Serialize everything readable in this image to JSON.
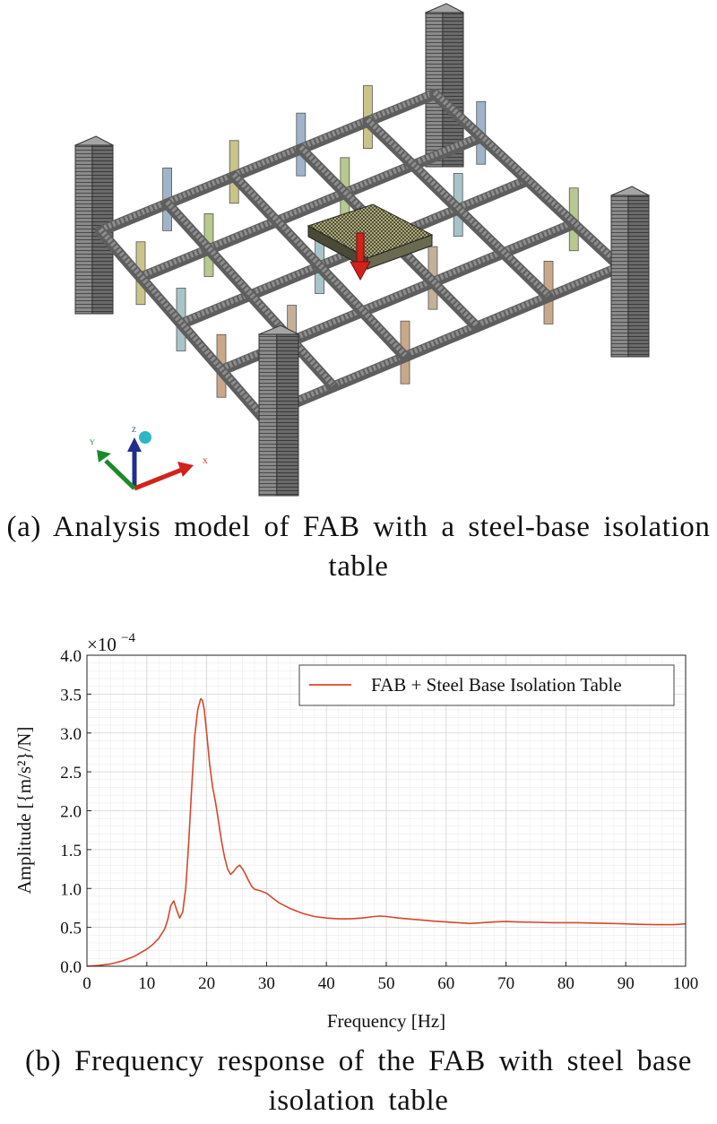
{
  "figure_a": {
    "caption": "(a) Analysis model of FAB with a steel-base isolation table",
    "axis_triad": {
      "x_label": "X",
      "y_label": "Y",
      "z_label": "Z"
    },
    "colors": {
      "frame": "#8d8d8d",
      "beam_dark": "#5e5e5e",
      "load_arrow": "#d0231c"
    }
  },
  "figure_b": {
    "caption": "(b) Frequency response of the FAB with steel base isolation table"
  },
  "chart_data": {
    "type": "line",
    "title": "",
    "xlabel": "Frequency [Hz]",
    "ylabel": "Amplitude [{m/s²}/N]",
    "y_multiplier_label": "×10",
    "y_multiplier_exponent": "−4",
    "xlim": [
      0,
      100
    ],
    "ylim": [
      0,
      4.0
    ],
    "xticks": [
      "0",
      "10",
      "20",
      "30",
      "40",
      "50",
      "60",
      "70",
      "80",
      "90",
      "100"
    ],
    "yticks": [
      "0.0",
      "0.5",
      "1.0",
      "1.5",
      "2.0",
      "2.5",
      "3.0",
      "3.5",
      "4.0"
    ],
    "grid": true,
    "legend_position": "top-right",
    "series": [
      {
        "name": "FAB + Steel Base Isolation Table",
        "color": "#d9462b",
        "x": [
          0,
          2,
          4,
          6,
          8,
          10,
          11,
          12,
          13,
          13.5,
          14,
          14.5,
          15,
          15.5,
          16,
          16.5,
          17,
          17.5,
          18,
          18.5,
          19,
          19.3,
          19.6,
          20,
          20.5,
          21,
          21.5,
          22,
          22.5,
          23,
          23.5,
          24,
          24.5,
          25,
          25.5,
          26,
          26.5,
          27,
          27.5,
          28,
          29,
          30,
          31,
          32,
          34,
          36,
          38,
          40,
          42,
          44,
          46,
          48,
          49,
          50,
          52,
          55,
          58,
          60,
          62,
          64,
          66,
          68,
          70,
          72,
          75,
          78,
          80,
          82,
          85,
          88,
          90,
          92,
          95,
          98,
          100
        ],
        "y": [
          0.0,
          0.01,
          0.03,
          0.07,
          0.13,
          0.22,
          0.28,
          0.36,
          0.48,
          0.6,
          0.78,
          0.84,
          0.72,
          0.62,
          0.7,
          1.0,
          1.6,
          2.3,
          2.95,
          3.3,
          3.44,
          3.42,
          3.3,
          3.0,
          2.6,
          2.3,
          2.1,
          1.85,
          1.6,
          1.4,
          1.25,
          1.18,
          1.22,
          1.27,
          1.3,
          1.25,
          1.18,
          1.1,
          1.03,
          0.99,
          0.97,
          0.94,
          0.88,
          0.82,
          0.74,
          0.68,
          0.64,
          0.62,
          0.61,
          0.61,
          0.62,
          0.64,
          0.645,
          0.64,
          0.62,
          0.6,
          0.58,
          0.57,
          0.56,
          0.55,
          0.56,
          0.57,
          0.575,
          0.57,
          0.565,
          0.56,
          0.56,
          0.56,
          0.555,
          0.55,
          0.545,
          0.54,
          0.535,
          0.535,
          0.545
        ]
      }
    ]
  }
}
